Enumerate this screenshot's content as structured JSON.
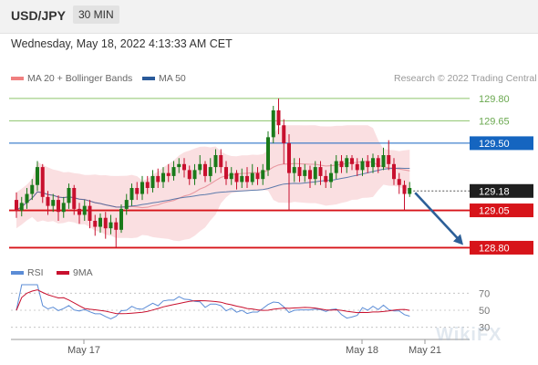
{
  "header": {
    "symbol": "USD/JPY",
    "timeframe": "30 MIN"
  },
  "datetime": "Wednesday, May 18, 2022 4:13:33 AM CET",
  "legend": {
    "ma20": "MA 20 + Bollinger Bands",
    "ma50": "MA 50",
    "rsi": "RSI",
    "ma9": "9MA"
  },
  "copyright": "Research © 2022 Trading Central",
  "watermark": "WikiFX",
  "colors": {
    "bull": "#1a7a1a",
    "bear": "#c8102e",
    "band": "#f9d9dc",
    "ma50": "#2a5a9a",
    "resistance": "#8dc46b",
    "pivot": "#1565c0",
    "support": "#d7141a",
    "current": "#1f1f1f",
    "arrow": "#2c5f98",
    "rsi": "#5b8cd6"
  },
  "chart_data": {
    "type": "candlestick",
    "price_range": [
      128.76,
      129.86
    ],
    "x_ticks": [
      "May 17",
      "May 18",
      "May 21"
    ],
    "levels": [
      {
        "price": 129.8,
        "label": "129.80",
        "kind": "resistance"
      },
      {
        "price": 129.65,
        "label": "129.65",
        "kind": "resistance"
      },
      {
        "price": 129.5,
        "label": "129.50",
        "kind": "pivot"
      },
      {
        "price": 129.18,
        "label": "129.18",
        "kind": "current"
      },
      {
        "price": 129.05,
        "label": "129.05",
        "kind": "support"
      },
      {
        "price": 128.8,
        "label": "128.80",
        "kind": "support"
      }
    ],
    "candles": [
      [
        129.12,
        129.05,
        129.17,
        129.0
      ],
      [
        129.05,
        129.1,
        129.14,
        129.01
      ],
      [
        129.1,
        129.16,
        129.2,
        129.06
      ],
      [
        129.16,
        129.22,
        129.26,
        129.12
      ],
      [
        129.22,
        129.34,
        129.38,
        129.18
      ],
      [
        129.34,
        129.14,
        129.36,
        129.1
      ],
      [
        129.14,
        129.08,
        129.18,
        129.02
      ],
      [
        129.08,
        129.12,
        129.16,
        129.04
      ],
      [
        129.12,
        129.04,
        129.15,
        128.98
      ],
      [
        129.04,
        129.1,
        129.14,
        129.0
      ],
      [
        129.1,
        129.2,
        129.23,
        129.06
      ],
      [
        129.2,
        129.06,
        129.22,
        129.02
      ],
      [
        129.06,
        129.02,
        129.1,
        128.96
      ],
      [
        129.02,
        129.08,
        129.12,
        128.98
      ],
      [
        129.08,
        128.98,
        129.12,
        128.93
      ],
      [
        128.98,
        128.94,
        129.02,
        128.88
      ],
      [
        128.94,
        129.0,
        129.03,
        128.9
      ],
      [
        129.0,
        128.93,
        129.04,
        128.86
      ],
      [
        128.93,
        128.97,
        129.02,
        128.89
      ],
      [
        128.97,
        128.92,
        129.0,
        128.8
      ],
      [
        128.92,
        129.06,
        129.09,
        128.9
      ],
      [
        129.06,
        129.12,
        129.16,
        129.02
      ],
      [
        129.12,
        129.2,
        129.23,
        129.08
      ],
      [
        129.2,
        129.16,
        129.24,
        129.12
      ],
      [
        129.16,
        129.24,
        129.28,
        129.12
      ],
      [
        129.24,
        129.2,
        129.28,
        129.16
      ],
      [
        129.2,
        129.28,
        129.32,
        129.17
      ],
      [
        129.28,
        129.24,
        129.33,
        129.2
      ],
      [
        129.24,
        129.3,
        129.34,
        129.2
      ],
      [
        129.3,
        129.28,
        129.36,
        129.24
      ],
      [
        129.28,
        129.34,
        129.38,
        129.25
      ],
      [
        129.34,
        129.36,
        129.4,
        129.3
      ],
      [
        129.36,
        129.32,
        129.4,
        129.27
      ],
      [
        129.32,
        129.26,
        129.35,
        129.22
      ],
      [
        129.26,
        129.32,
        129.36,
        129.22
      ],
      [
        129.32,
        129.36,
        129.42,
        129.29
      ],
      [
        129.36,
        129.28,
        129.38,
        129.24
      ],
      [
        129.28,
        129.34,
        129.4,
        129.24
      ],
      [
        129.34,
        129.42,
        129.46,
        129.3
      ],
      [
        129.42,
        129.34,
        129.46,
        129.3
      ],
      [
        129.34,
        129.26,
        129.38,
        129.22
      ],
      [
        129.26,
        129.3,
        129.34,
        129.22
      ],
      [
        129.3,
        129.24,
        129.32,
        129.19
      ],
      [
        129.24,
        129.28,
        129.33,
        129.2
      ],
      [
        129.28,
        129.24,
        129.34,
        129.2
      ],
      [
        129.24,
        129.3,
        129.36,
        129.22
      ],
      [
        129.3,
        129.26,
        129.34,
        129.22
      ],
      [
        129.26,
        129.32,
        129.36,
        129.22
      ],
      [
        129.32,
        129.54,
        129.58,
        129.28
      ],
      [
        129.54,
        129.72,
        129.75,
        129.5
      ],
      [
        129.72,
        129.62,
        129.8,
        129.56
      ],
      [
        129.62,
        129.5,
        129.66,
        129.36
      ],
      [
        129.5,
        129.3,
        129.56,
        129.05
      ],
      [
        129.3,
        129.34,
        129.4,
        129.24
      ],
      [
        129.34,
        129.28,
        129.4,
        129.24
      ],
      [
        129.28,
        129.32,
        129.36,
        129.24
      ],
      [
        129.32,
        129.26,
        129.35,
        129.2
      ],
      [
        129.26,
        129.34,
        129.38,
        129.22
      ],
      [
        129.34,
        129.28,
        129.38,
        129.22
      ],
      [
        129.28,
        129.24,
        129.32,
        129.2
      ],
      [
        129.24,
        129.3,
        129.36,
        129.2
      ],
      [
        129.3,
        129.38,
        129.42,
        129.26
      ],
      [
        129.38,
        129.34,
        129.42,
        129.3
      ],
      [
        129.34,
        129.4,
        129.42,
        129.3
      ],
      [
        129.4,
        129.36,
        129.42,
        129.32
      ],
      [
        129.36,
        129.32,
        129.4,
        129.28
      ],
      [
        129.32,
        129.38,
        129.4,
        129.28
      ],
      [
        129.38,
        129.34,
        129.42,
        129.3
      ],
      [
        129.34,
        129.4,
        129.43,
        129.3
      ],
      [
        129.4,
        129.34,
        129.42,
        129.3
      ],
      [
        129.34,
        129.42,
        129.47,
        129.32
      ],
      [
        129.42,
        129.36,
        129.52,
        129.32
      ],
      [
        129.36,
        129.26,
        129.4,
        129.22
      ],
      [
        129.26,
        129.22,
        129.3,
        129.16
      ],
      [
        129.22,
        129.16,
        129.25,
        129.05
      ],
      [
        129.16,
        129.2,
        129.24,
        129.14
      ]
    ],
    "rsi_axis": {
      "min": 20,
      "max": 80,
      "ticks": [
        70,
        50,
        30
      ]
    }
  }
}
